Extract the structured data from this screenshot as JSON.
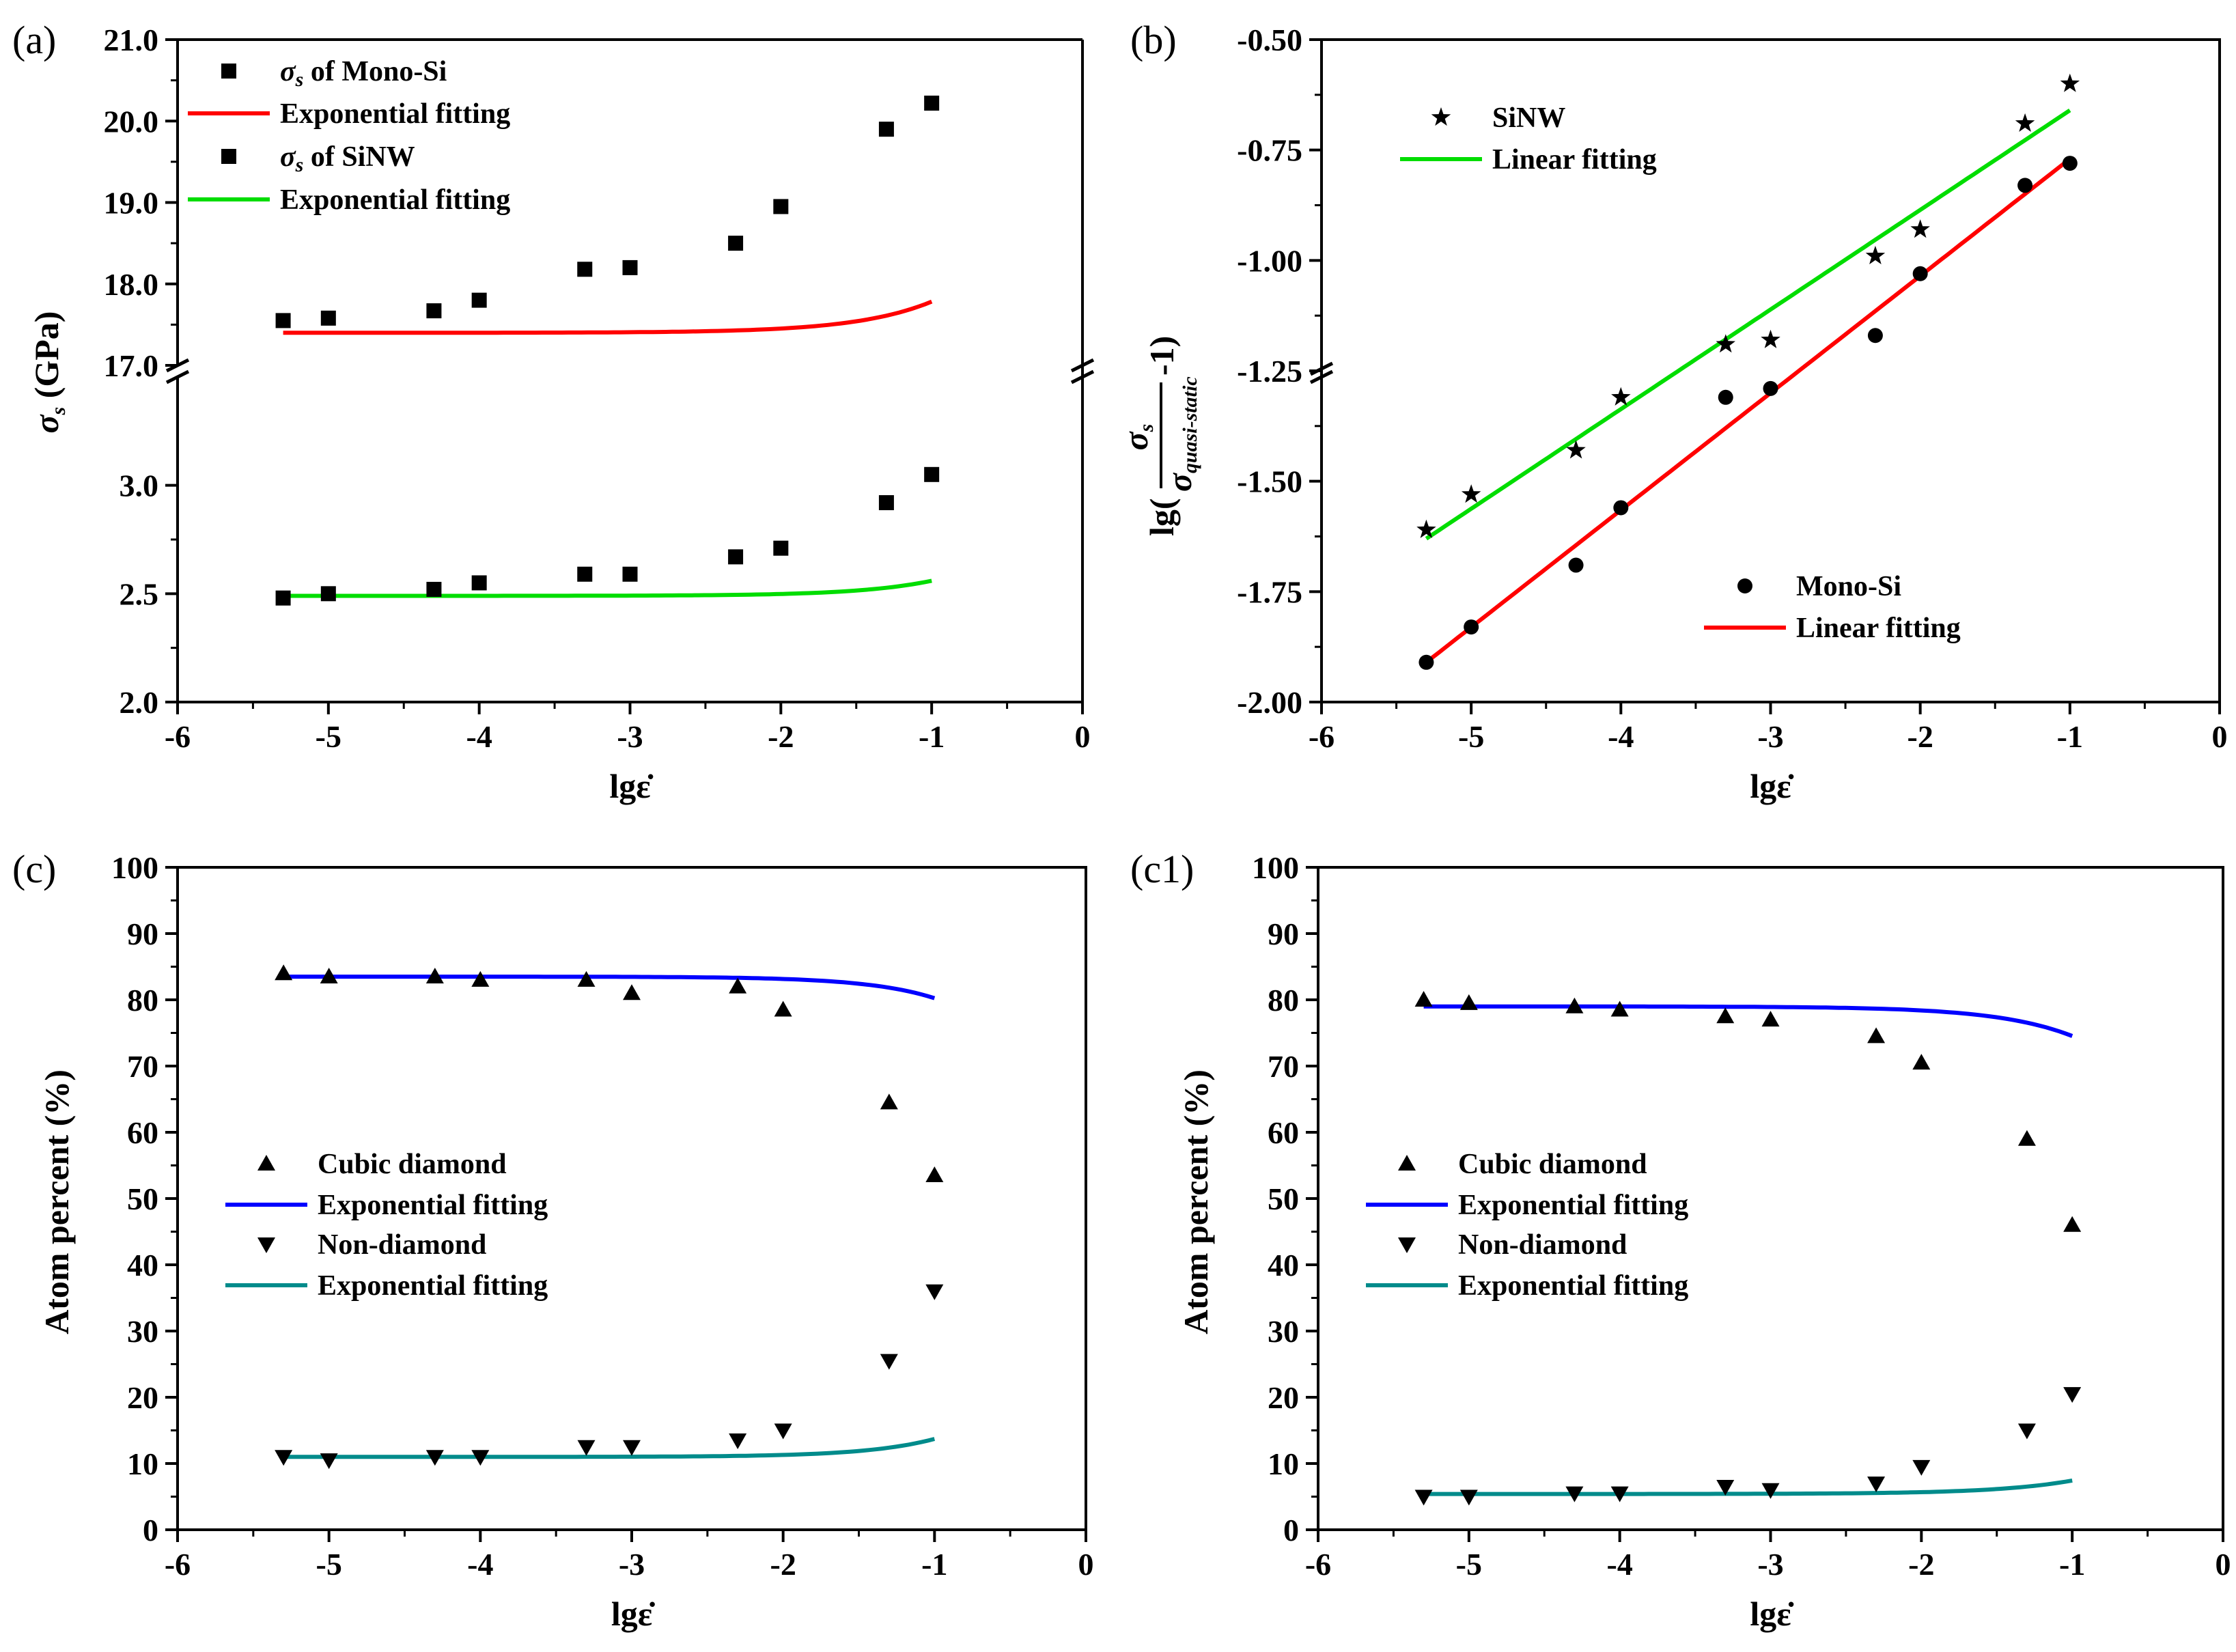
{
  "chart_data": [
    {
      "id": "a",
      "type": "scatter",
      "panel_label": "(a)",
      "xlabel": "lgε̇",
      "ylabel": "σs (GPa)",
      "xlim": [
        -6,
        0
      ],
      "xticks": [
        "-6",
        "-5",
        "-4",
        "-3",
        "-2",
        "-1",
        "0"
      ],
      "axis_break": true,
      "y_upper": {
        "ylim": [
          17.0,
          21.0
        ],
        "yticks": [
          "17.0",
          "18.0",
          "19.0",
          "20.0",
          "21.0"
        ]
      },
      "y_lower": {
        "ylim": [
          2.0,
          3.5
        ],
        "yticks": [
          "2.0",
          "2.5",
          "3.0"
        ]
      },
      "series": [
        {
          "name": "σs of Mono-Si",
          "segment": "upper",
          "marker": "square",
          "color": "#000000",
          "x": [
            -5.3,
            -5,
            -4.3,
            -4,
            -3.3,
            -3,
            -2.3,
            -2,
            -1.3,
            -1
          ],
          "y": [
            17.55,
            17.58,
            17.67,
            17.8,
            18.18,
            18.2,
            18.5,
            18.95,
            19.9,
            20.22
          ]
        },
        {
          "name": "Exponential fitting",
          "segment": "upper",
          "type": "line",
          "color": "#ff0000",
          "fit": {
            "model": "exp",
            "y0": 17.4,
            "A": 2.83,
            "t": 0.5
          }
        },
        {
          "name": "σs of SiNW",
          "segment": "lower",
          "marker": "square",
          "color": "#000000",
          "x": [
            -5.3,
            -5,
            -4.3,
            -4,
            -3.3,
            -3,
            -2.3,
            -2,
            -1.3,
            -1
          ],
          "y": [
            2.48,
            2.5,
            2.52,
            2.55,
            2.59,
            2.59,
            2.67,
            2.71,
            2.92,
            3.05
          ]
        },
        {
          "name": "Exponential fitting",
          "segment": "lower",
          "type": "line",
          "color": "#00dd00",
          "fit": {
            "model": "exp",
            "y0": 2.49,
            "A": 0.56,
            "t": 0.48
          }
        }
      ],
      "legend": [
        {
          "marker": "square",
          "prefix": "σ",
          "sub": "s",
          "suffix": " of Mono-Si"
        },
        {
          "line_color": "#ff0000",
          "label": "Exponential fitting"
        },
        {
          "marker": "square",
          "prefix": "σ",
          "sub": "s",
          "suffix": " of SiNW"
        },
        {
          "line_color": "#00dd00",
          "label": "Exponential fitting"
        }
      ]
    },
    {
      "id": "b",
      "type": "scatter",
      "panel_label": "(b)",
      "xlabel": "lgε̇",
      "ylabel": "lg(σs/σquasi-static −1)",
      "ylabel_parts": {
        "prefix": "lg(",
        "num": "σ",
        "num_sub": "s",
        "den": "σ",
        "den_sub": "quasi-static",
        "suffix": "-1)"
      },
      "xlim": [
        -6,
        0
      ],
      "ylim": [
        -2.0,
        -0.5
      ],
      "xticks": [
        "-6",
        "-5",
        "-4",
        "-3",
        "-2",
        "-1",
        "0"
      ],
      "yticks": [
        "-2.00",
        "-1.75",
        "-1.50",
        "-1.25",
        "-1.00",
        "-0.75",
        "-0.50"
      ],
      "series": [
        {
          "name": "SiNW",
          "marker": "star",
          "color": "#000000",
          "x": [
            -5.3,
            -5,
            -4.3,
            -4,
            -3.3,
            -3,
            -2.3,
            -2,
            -1.3,
            -1
          ],
          "y": [
            -1.61,
            -1.53,
            -1.43,
            -1.31,
            -1.19,
            -1.18,
            -0.99,
            -0.93,
            -0.69,
            -0.6
          ]
        },
        {
          "name": "Linear fitting",
          "type": "line",
          "color": "#00dd00",
          "fit": {
            "model": "linear",
            "x": [
              -5.3,
              -1
            ],
            "y": [
              -1.63,
              -0.66
            ]
          }
        },
        {
          "name": "Mono-Si",
          "marker": "circle",
          "color": "#000000",
          "x": [
            -5.3,
            -5,
            -4.3,
            -4,
            -3.3,
            -3,
            -2.3,
            -2,
            -1.3,
            -1
          ],
          "y": [
            -1.91,
            -1.83,
            -1.69,
            -1.56,
            -1.31,
            -1.29,
            -1.17,
            -1.03,
            -0.83,
            -0.78
          ]
        },
        {
          "name": "Linear fitting",
          "type": "line",
          "color": "#ff0000",
          "fit": {
            "model": "linear",
            "x": [
              -5.3,
              -1
            ],
            "y": [
              -1.91,
              -0.77
            ]
          }
        }
      ],
      "legend_top": [
        {
          "marker": "star",
          "label": "SiNW"
        },
        {
          "line_color": "#00dd00",
          "label": "Linear fitting"
        }
      ],
      "legend_bottom": [
        {
          "marker": "circle",
          "label": "Mono-Si"
        },
        {
          "line_color": "#ff0000",
          "label": "Linear fitting"
        }
      ]
    },
    {
      "id": "c",
      "type": "scatter",
      "panel_label": "(c)",
      "xlabel": "lgε̇",
      "ylabel": "Atom percent (%)",
      "xlim": [
        -6,
        0
      ],
      "ylim": [
        0,
        100
      ],
      "xticks": [
        "-6",
        "-5",
        "-4",
        "-3",
        "-2",
        "-1",
        "0"
      ],
      "yticks": [
        "0",
        "10",
        "20",
        "30",
        "40",
        "50",
        "60",
        "70",
        "80",
        "90",
        "100"
      ],
      "series": [
        {
          "name": "Cubic diamond",
          "marker": "triangle-up",
          "color": "#000000",
          "x": [
            -5.3,
            -5,
            -4.3,
            -4,
            -3.3,
            -3,
            -2.3,
            -2,
            -1.3,
            -1
          ],
          "y": [
            84,
            83.5,
            83.5,
            83,
            83,
            81,
            82,
            78.5,
            64.5,
            53.5
          ]
        },
        {
          "name": "Exponential fitting",
          "type": "line",
          "color": "#0000ff",
          "fit": {
            "model": "exp_neg",
            "y0": 83.5,
            "A": 30,
            "t": 0.45
          }
        },
        {
          "name": "Non-diamond",
          "marker": "triangle-down",
          "color": "#000000",
          "x": [
            -5.3,
            -5,
            -4.3,
            -4,
            -3.3,
            -3,
            -2.3,
            -2,
            -1.3,
            -1
          ],
          "y": [
            11,
            10.5,
            11,
            11,
            12.5,
            12.5,
            13.5,
            15,
            25.5,
            36
          ]
        },
        {
          "name": "Exponential fitting",
          "type": "line",
          "color": "#008b8b",
          "fit": {
            "model": "exp",
            "y0": 11,
            "A": 25,
            "t": 0.45
          }
        }
      ],
      "legend": [
        {
          "marker": "triangle-up",
          "label": "Cubic diamond"
        },
        {
          "line_color": "#0000ff",
          "label": "Exponential fitting"
        },
        {
          "marker": "triangle-down",
          "label": "Non-diamond"
        },
        {
          "line_color": "#008b8b",
          "label": "Exponential fitting"
        }
      ]
    },
    {
      "id": "c1",
      "type": "scatter",
      "panel_label": "(c1)",
      "xlabel": "lgε̇",
      "ylabel": "Atom percent (%)",
      "xlim": [
        -6,
        0
      ],
      "ylim": [
        0,
        100
      ],
      "xticks": [
        "-6",
        "-5",
        "-4",
        "-3",
        "-2",
        "-1",
        "0"
      ],
      "yticks": [
        "0",
        "10",
        "20",
        "30",
        "40",
        "50",
        "60",
        "70",
        "80",
        "90",
        "100"
      ],
      "series": [
        {
          "name": "Cubic diamond",
          "marker": "triangle-up",
          "color": "#000000",
          "x": [
            -5.3,
            -5,
            -4.3,
            -4,
            -3.3,
            -3,
            -2.3,
            -2,
            -1.3,
            -1
          ],
          "y": [
            80,
            79.5,
            79,
            78.5,
            77.5,
            77,
            74.5,
            70.5,
            59,
            46
          ]
        },
        {
          "name": "Exponential fitting",
          "type": "line",
          "color": "#0000ff",
          "fit": {
            "model": "exp_neg",
            "y0": 79,
            "A": 33,
            "t": 0.5
          }
        },
        {
          "name": "Non-diamond",
          "marker": "triangle-down",
          "color": "#000000",
          "x": [
            -5.3,
            -5,
            -4.3,
            -4,
            -3.3,
            -3,
            -2.3,
            -2,
            -1.3,
            -1
          ],
          "y": [
            5,
            5,
            5.5,
            5.5,
            6.5,
            6,
            7,
            9.5,
            15,
            20.5
          ]
        },
        {
          "name": "Exponential fitting",
          "type": "line",
          "color": "#008b8b",
          "fit": {
            "model": "exp",
            "y0": 5.4,
            "A": 15,
            "t": 0.5
          }
        }
      ],
      "legend": [
        {
          "marker": "triangle-up",
          "label": "Cubic diamond"
        },
        {
          "line_color": "#0000ff",
          "label": "Exponential fitting"
        },
        {
          "marker": "triangle-down",
          "label": "Non-diamond"
        },
        {
          "line_color": "#008b8b",
          "label": "Exponential fitting"
        }
      ]
    }
  ]
}
